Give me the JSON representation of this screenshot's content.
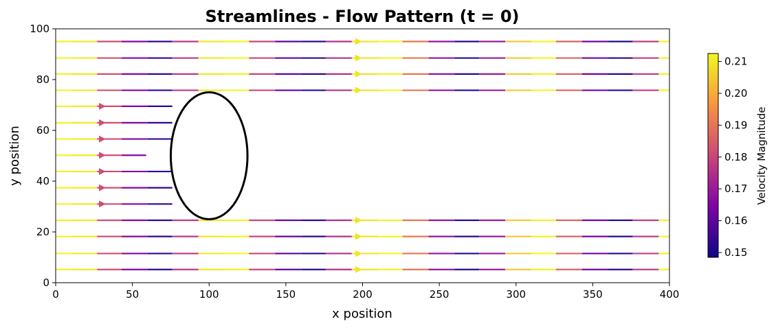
{
  "chart_data": {
    "type": "streamplot",
    "title": "Streamlines - Flow Pattern (t = 0)",
    "xlabel": "x position",
    "ylabel": "y position",
    "xlim": [
      0,
      400
    ],
    "ylim": [
      0,
      100
    ],
    "x_ticks": [
      0,
      50,
      100,
      150,
      200,
      250,
      300,
      350,
      400
    ],
    "y_ticks": [
      0,
      20,
      40,
      60,
      80,
      100
    ],
    "grid": false,
    "colormap": "plasma",
    "colorbar": {
      "label": "Velocity Magnitude",
      "range": [
        0.1485,
        0.2125
      ],
      "ticks": [
        0.15,
        0.16,
        0.17,
        0.18,
        0.19,
        0.2,
        0.21
      ],
      "tick_labels": [
        "0.15",
        "0.16",
        "0.17",
        "0.18",
        "0.19",
        "0.20",
        "0.21"
      ]
    },
    "obstacle": {
      "shape": "ellipse",
      "center": [
        100,
        50
      ],
      "rx": 25,
      "ry": 25,
      "color": "#000000"
    },
    "streamlines_full": [
      {
        "y": 95,
        "arrow_x": 197
      },
      {
        "y": 88.5,
        "arrow_x": 197
      },
      {
        "y": 82.2,
        "arrow_x": 197
      },
      {
        "y": 75.8,
        "arrow_x": 197
      },
      {
        "y": 24.6,
        "arrow_x": 197
      },
      {
        "y": 18.2,
        "arrow_x": 197
      },
      {
        "y": 11.5,
        "arrow_x": 197
      },
      {
        "y": 5.2,
        "arrow_x": 197
      }
    ],
    "streamlines_upstream": [
      {
        "y": 69.5,
        "x_end": 76,
        "arrow_x": 30
      },
      {
        "y": 63.0,
        "x_end": 76,
        "arrow_x": 30
      },
      {
        "y": 56.6,
        "x_end": 76,
        "arrow_x": 30
      },
      {
        "y": 50.2,
        "x_end": 59,
        "arrow_x": 30
      },
      {
        "y": 43.8,
        "x_end": 76,
        "arrow_x": 30
      },
      {
        "y": 37.4,
        "x_end": 76,
        "arrow_x": 30
      },
      {
        "y": 31.0,
        "x_end": 76,
        "arrow_x": 30
      }
    ],
    "segment_boundaries_x": [
      0,
      11,
      27,
      43,
      60,
      76,
      93,
      110,
      126,
      143,
      160,
      176,
      193,
      210,
      226,
      243,
      260,
      276,
      293,
      310,
      326,
      343,
      360,
      376,
      393,
      400
    ],
    "segment_speeds": [
      0.212,
      0.21,
      0.182,
      0.165,
      0.153,
      0.177,
      0.21,
      0.212,
      0.18,
      0.16,
      0.153,
      0.175,
      0.209,
      0.212,
      0.19,
      0.168,
      0.152,
      0.17,
      0.205,
      0.212,
      0.186,
      0.162,
      0.152,
      0.178,
      0.212
    ]
  }
}
